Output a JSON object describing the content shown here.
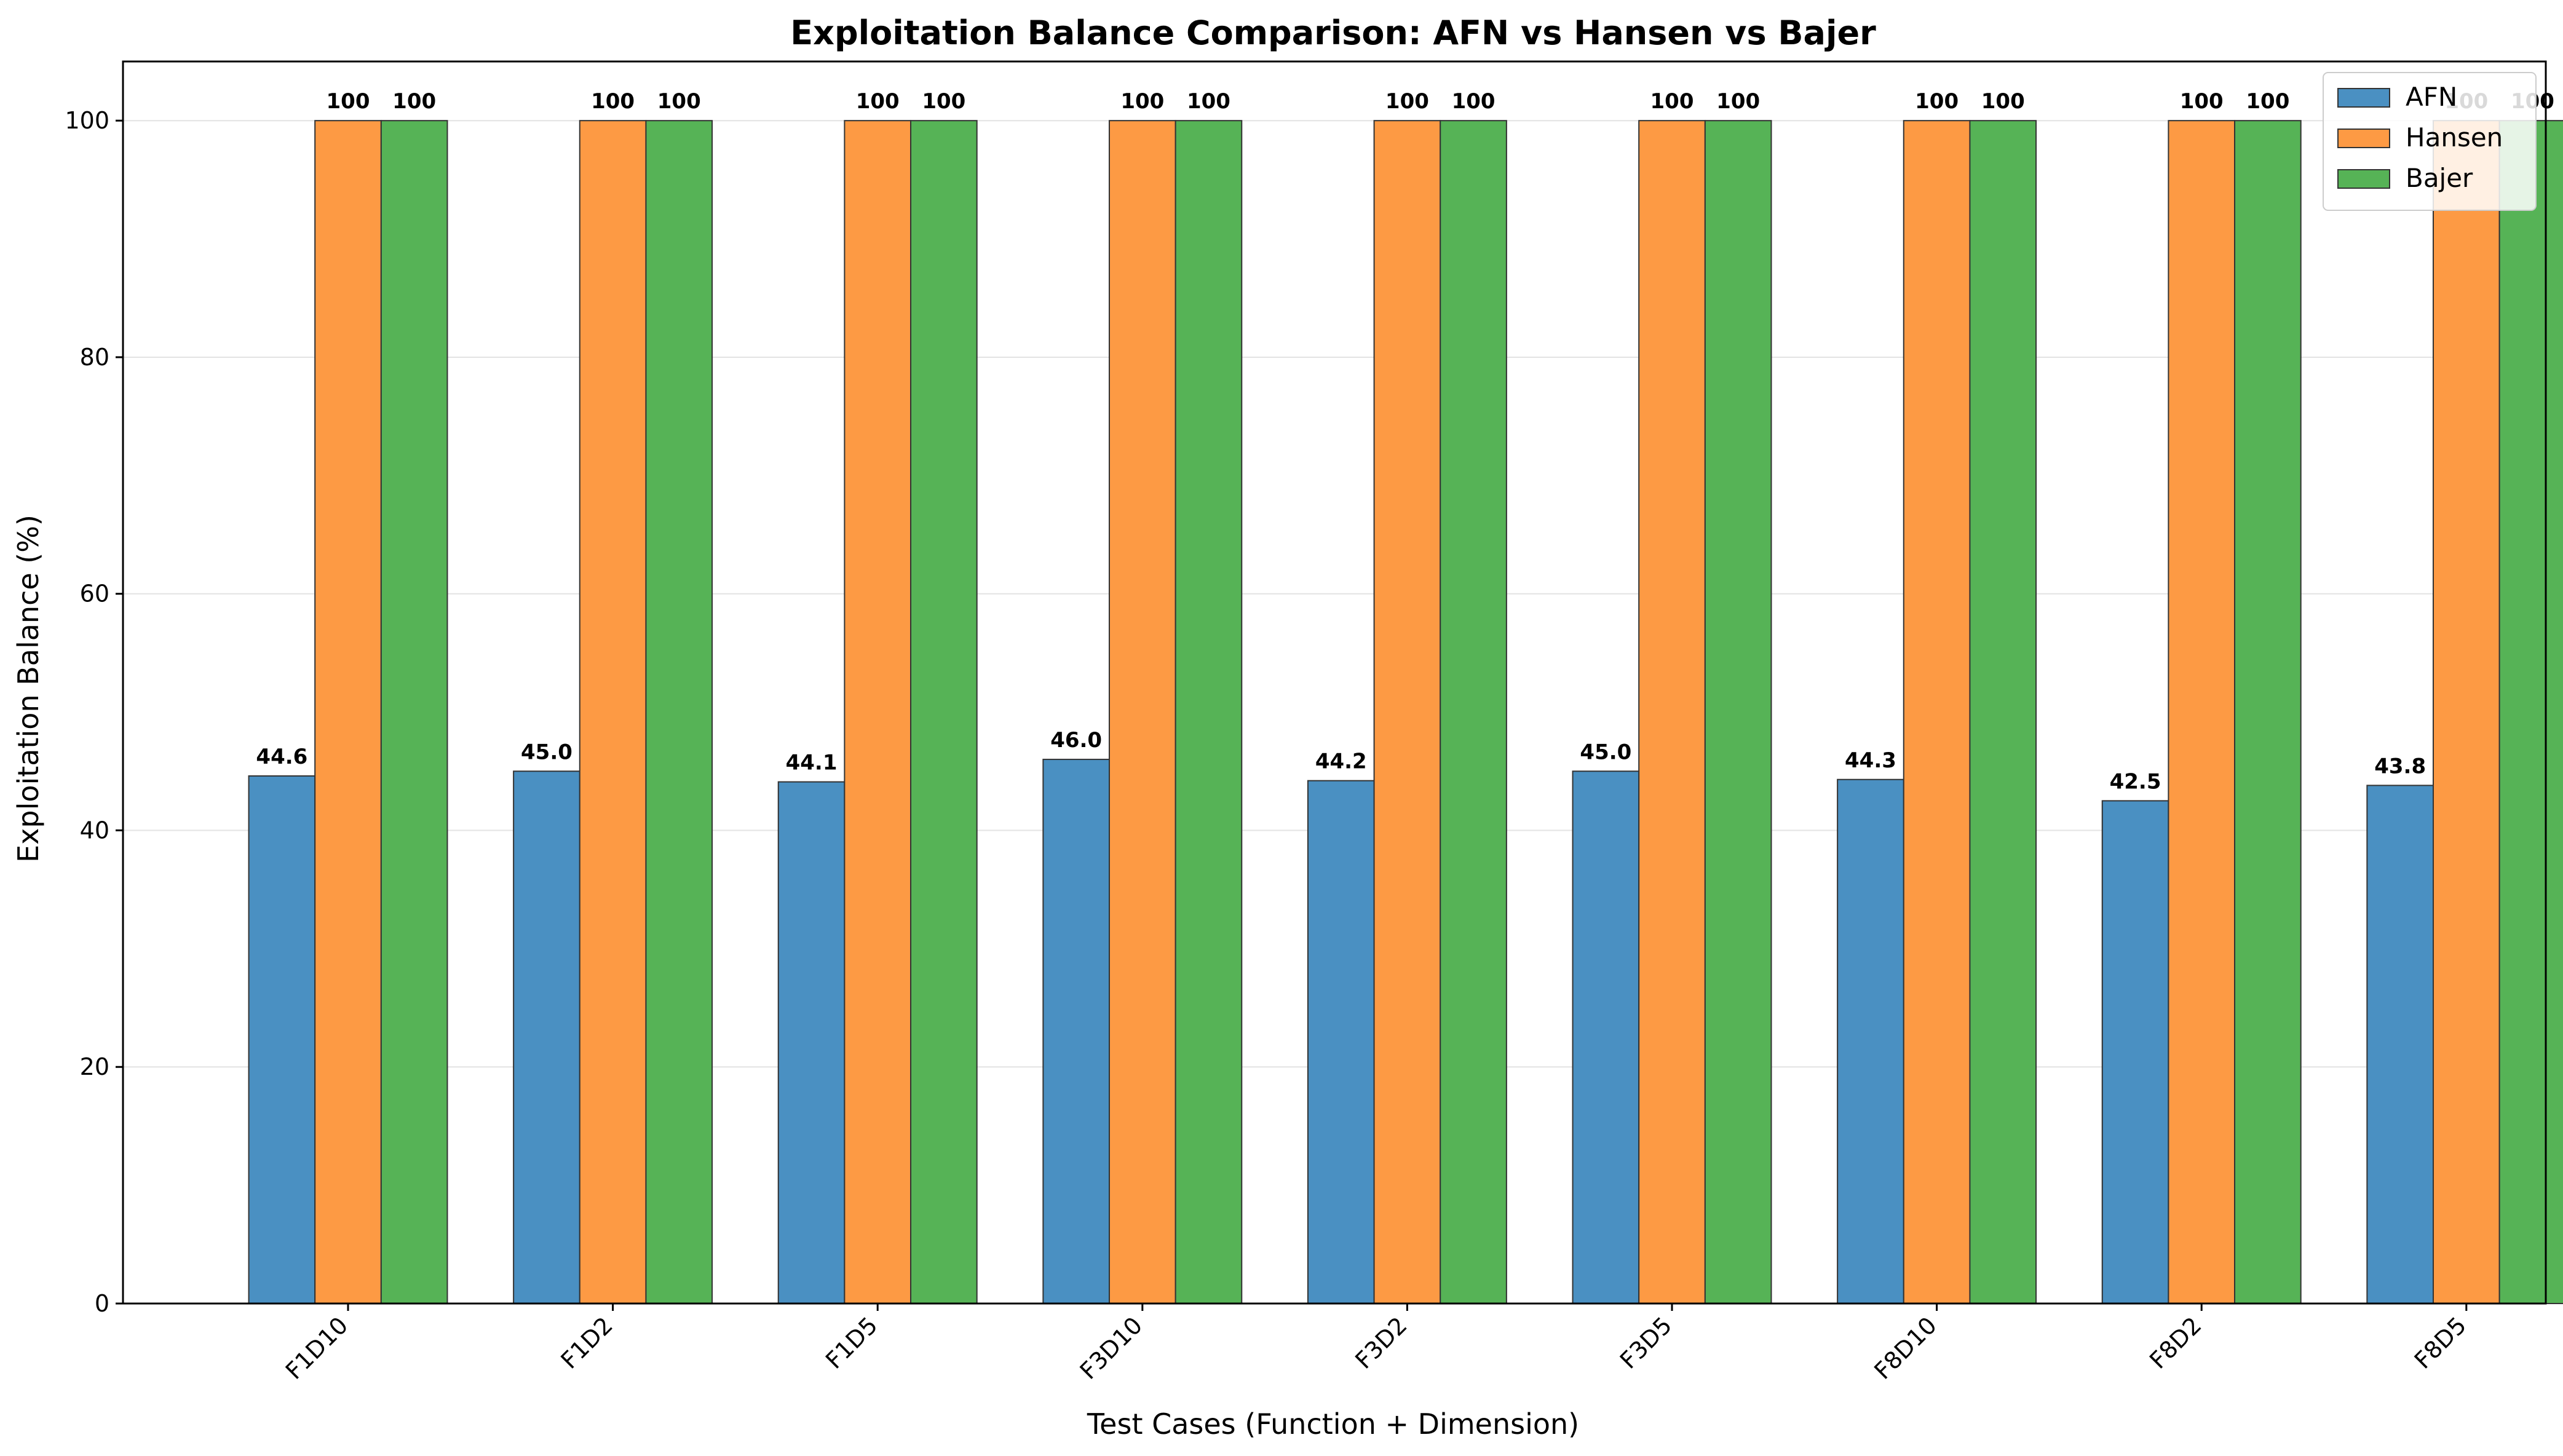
{
  "chart_data": {
    "type": "bar",
    "title": "Exploitation Balance Comparison: AFN vs Hansen vs Bajer",
    "xlabel": "Test Cases (Function + Dimension)",
    "ylabel": "Exploitation Balance (%)",
    "categories": [
      "F1D10",
      "F1D2",
      "F1D5",
      "F3D10",
      "F3D2",
      "F3D5",
      "F8D10",
      "F8D2",
      "F8D5"
    ],
    "ylim": [
      0,
      105
    ],
    "yticks": [
      0,
      20,
      40,
      60,
      80,
      100
    ],
    "grid": "y",
    "legend_position": "top-right",
    "series": [
      {
        "name": "AFN",
        "color": "#4a90c2",
        "values": [
          44.6,
          45.0,
          44.1,
          46.0,
          44.2,
          45.0,
          44.3,
          42.5,
          43.8
        ],
        "labels": [
          "44.6",
          "45.0",
          "44.1",
          "46.0",
          "44.2",
          "45.0",
          "44.3",
          "42.5",
          "43.8"
        ]
      },
      {
        "name": "Hansen",
        "color": "#fd9a44",
        "values": [
          100,
          100,
          100,
          100,
          100,
          100,
          100,
          100,
          100
        ],
        "labels": [
          "100",
          "100",
          "100",
          "100",
          "100",
          "100",
          "100",
          "100",
          "100"
        ]
      },
      {
        "name": "Bajer",
        "color": "#56b356",
        "values": [
          100,
          100,
          100,
          100,
          100,
          100,
          100,
          100,
          100
        ],
        "labels": [
          "100",
          "100",
          "100",
          "100",
          "100",
          "100",
          "100",
          "100",
          "100"
        ]
      }
    ]
  }
}
